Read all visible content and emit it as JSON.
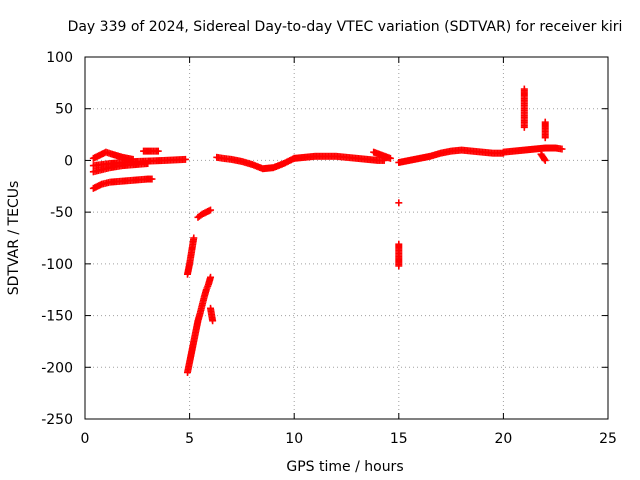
{
  "chart_data": {
    "type": "scatter",
    "title": "Day 339 of 2024, Sidereal Day-to-day VTEC variation (SDTVAR) for receiver kiri",
    "xlabel": "GPS time / hours",
    "ylabel": "SDTVAR / TECUs",
    "xlim": [
      0,
      25
    ],
    "ylim": [
      -250,
      100
    ],
    "xticks": [
      0,
      5,
      10,
      15,
      20,
      25
    ],
    "yticks": [
      -250,
      -200,
      -150,
      -100,
      -50,
      0,
      50,
      100
    ],
    "grid": true,
    "marker": "+",
    "color": "#ff0000",
    "series": [
      {
        "name": "SDTVAR",
        "segments": [
          {
            "x": [
              0.4,
              0.8,
              1.0,
              1.3,
              1.8,
              2.3
            ],
            "y": [
              2,
              6,
              8,
              6,
              3,
              1
            ]
          },
          {
            "x": [
              0.4,
              0.8,
              1.2,
              1.8,
              2.5,
              3.2,
              3.8,
              4.3,
              4.8
            ],
            "y": [
              -5,
              -4,
              -3,
              -2,
              -1,
              -0.5,
              0,
              0.5,
              1
            ]
          },
          {
            "x": [
              0.4,
              0.8,
              1.2,
              1.8,
              2.4,
              3.0
            ],
            "y": [
              -11,
              -9,
              -7,
              -5,
              -4,
              -3
            ]
          },
          {
            "x": [
              0.4,
              0.8,
              1.2,
              1.8,
              2.4,
              3.0,
              3.2
            ],
            "y": [
              -27,
              -23,
              -21,
              -20,
              -19,
              -18,
              -18
            ]
          },
          {
            "x": [
              2.8,
              3.0,
              3.2,
              3.5
            ],
            "y": [
              9,
              9,
              9,
              9
            ]
          },
          {
            "x": [
              4.9,
              5.0,
              5.2
            ],
            "y": [
              -110,
              -100,
              -75
            ]
          },
          {
            "x": [
              4.9,
              5.0,
              5.1,
              5.2,
              5.3,
              5.4,
              5.5,
              5.6,
              5.7,
              5.8,
              5.9,
              6.0
            ],
            "y": [
              -205,
              -195,
              -185,
              -175,
              -165,
              -155,
              -148,
              -140,
              -132,
              -125,
              -120,
              -113
            ]
          },
          {
            "x": [
              5.4,
              5.6,
              5.8,
              6.0
            ],
            "y": [
              -55,
              -52,
              -50,
              -48
            ]
          },
          {
            "x": [
              6.0,
              6.1
            ],
            "y": [
              -143,
              -155
            ]
          },
          {
            "x": [
              6.3,
              6.6,
              7.0,
              7.5,
              8.0,
              8.5,
              9.0,
              9.5,
              10.0
            ],
            "y": [
              3,
              2,
              1,
              -1,
              -4,
              -8,
              -7,
              -3,
              2
            ]
          },
          {
            "x": [
              10.0,
              10.5,
              11.0,
              11.5,
              12.0,
              12.5,
              13.0,
              13.5,
              14.0,
              14.3
            ],
            "y": [
              2,
              3,
              4,
              4,
              4,
              3,
              2,
              1,
              0,
              0
            ]
          },
          {
            "x": [
              13.8,
              14.2,
              14.6
            ],
            "y": [
              8,
              5,
              2
            ]
          },
          {
            "x": [
              15.0,
              15.0,
              15.0,
              15.0
            ],
            "y": [
              -41,
              -81,
              -99,
              -102
            ]
          },
          {
            "x": [
              15.0,
              15.5,
              16.0,
              16.5,
              17.0,
              17.5,
              18.0,
              18.5,
              19.0,
              19.5,
              20.0
            ],
            "y": [
              -2,
              0,
              2,
              4,
              7,
              9,
              10,
              9,
              8,
              7,
              7
            ]
          },
          {
            "x": [
              20.0,
              20.5,
              21.0,
              21.5,
              22.0,
              22.5,
              22.8
            ],
            "y": [
              8,
              9,
              10,
              11,
              12,
              12,
              11
            ]
          },
          {
            "x": [
              21.0,
              21.0,
              21.0,
              21.0,
              21.0
            ],
            "y": [
              69,
              63,
              55,
              45,
              32
            ]
          },
          {
            "x": [
              22.0,
              22.0,
              22.0,
              21.8
            ],
            "y": [
              37,
              22,
              0,
              6
            ]
          }
        ]
      }
    ]
  }
}
